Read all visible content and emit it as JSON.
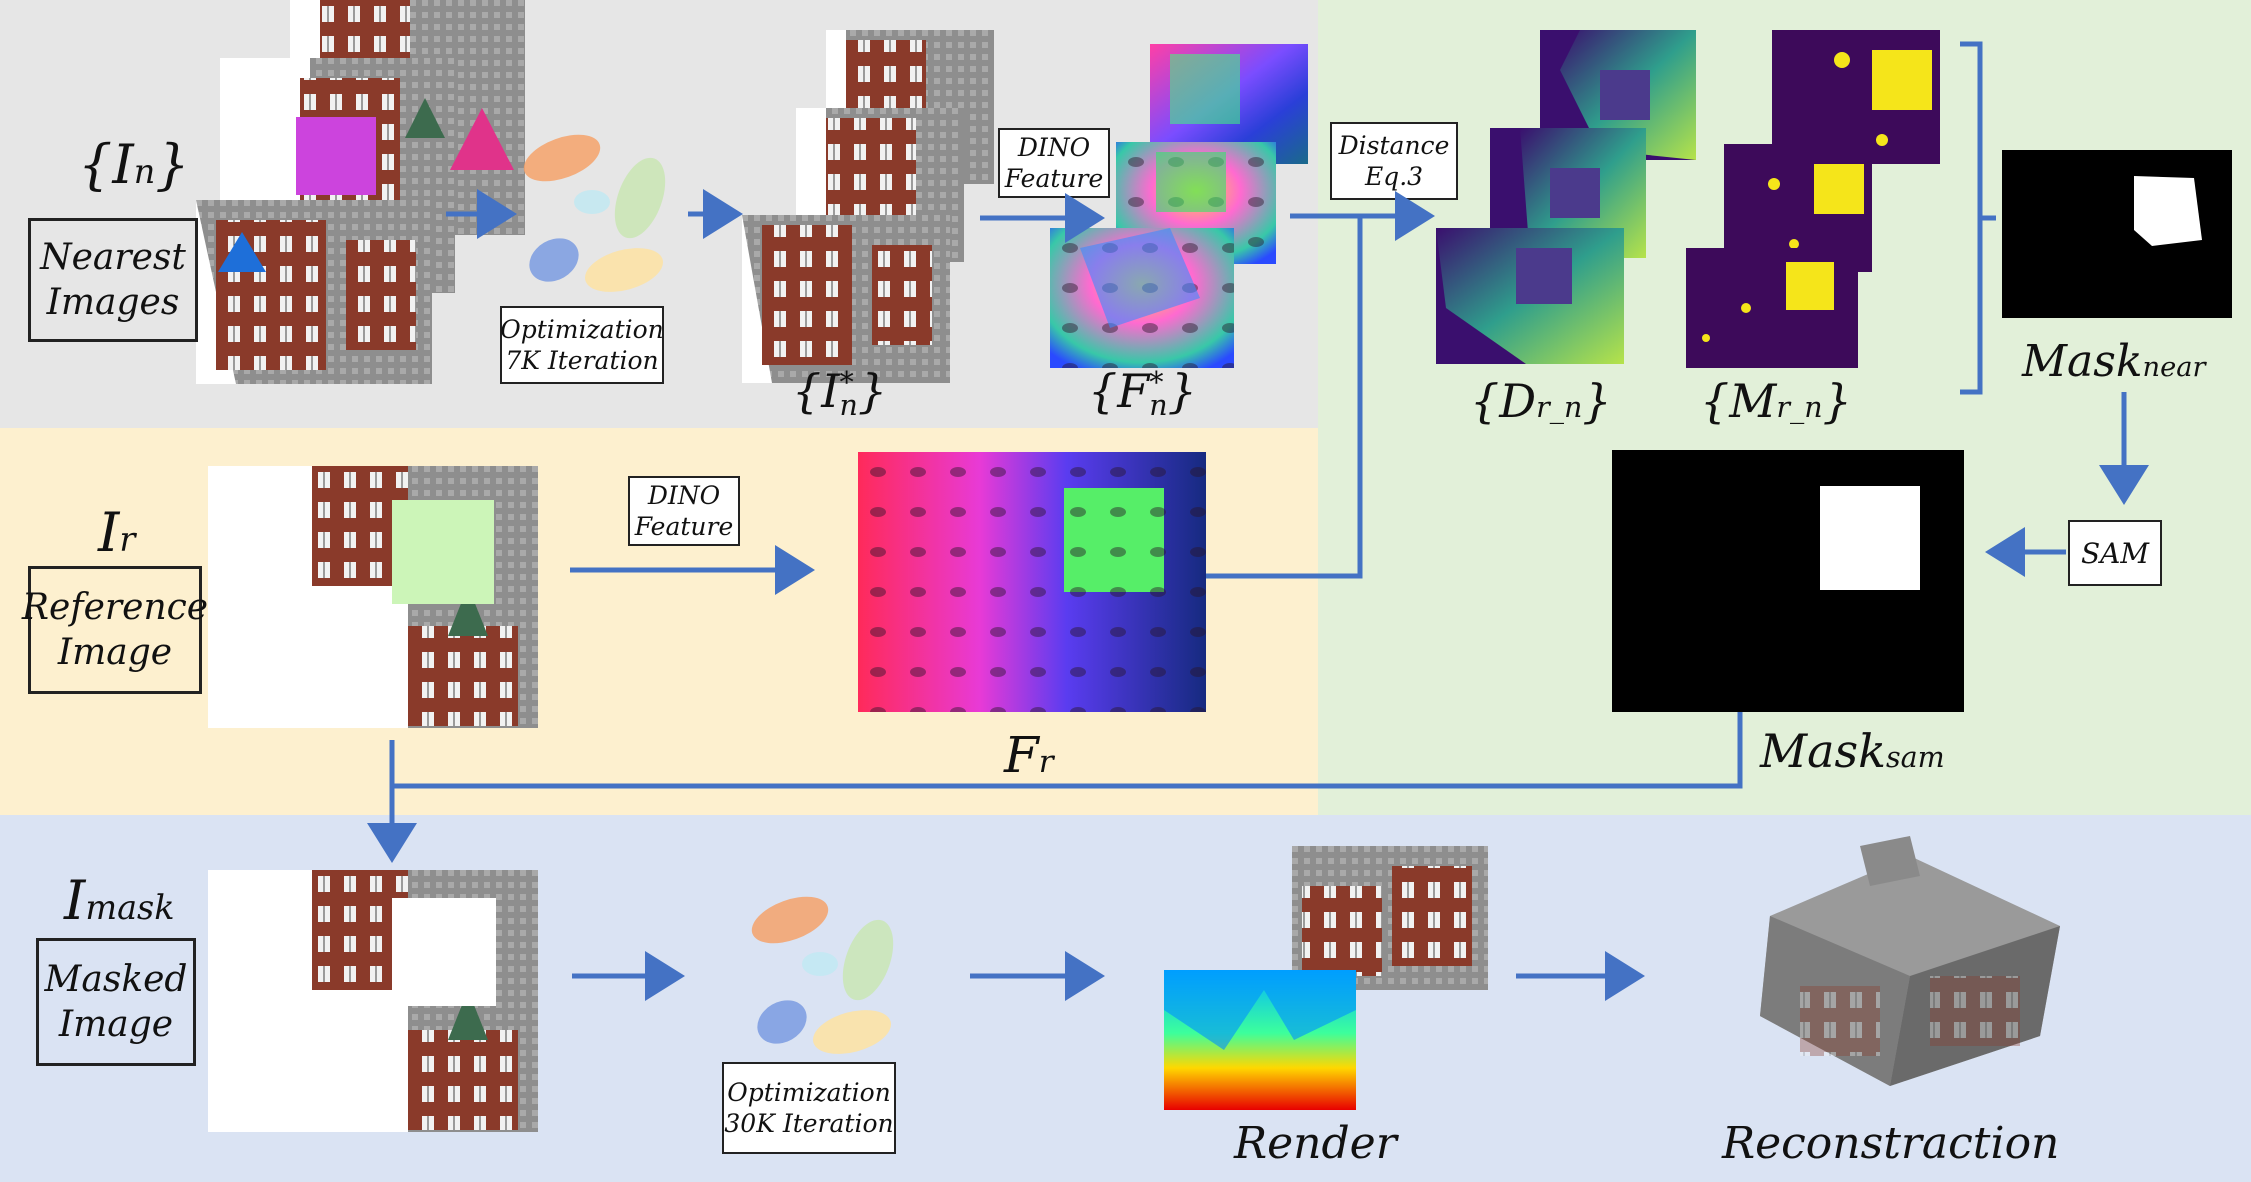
{
  "labels": {
    "In": "{I",
    "In_sub": "n",
    "In_close": "}",
    "In_star": "{I",
    "In_star_sup": "*",
    "In_star_sub": "n",
    "In_star_close": "}",
    "Fn_star": "{F",
    "Fn_star_sup": "*",
    "Fn_star_sub": "n",
    "Fn_star_close": "}",
    "Drn": "{D",
    "Drn_sub": "r_n",
    "Drn_close": "}",
    "Mrn": "{M",
    "Mrn_sub": "r_n",
    "Mrn_close": "}",
    "mask_near": "Mask",
    "mask_near_sub": "near",
    "mask_sam": "Mask",
    "mask_sam_sub": "sam",
    "Ir": "I",
    "Ir_sub": "r",
    "Fr": "F",
    "Fr_sub": "r",
    "Imask": "I",
    "Imask_sub": "mask",
    "render": "Render",
    "reconstruction": "Reconstraction"
  },
  "boxes": {
    "nearest_images": [
      "Nearest",
      "Images"
    ],
    "reference_image": [
      "Reference",
      "Image"
    ],
    "masked_image": [
      "Masked",
      "Image"
    ],
    "optimization_7k": [
      "Optimization",
      "7K Iteration"
    ],
    "optimization_30k": [
      "Optimization",
      "30K Iteration"
    ],
    "dino_feature_top": [
      "DINO",
      "Feature"
    ],
    "dino_feature_mid": [
      "DINO",
      "Feature"
    ],
    "distance": [
      "Distance",
      "Eq.3"
    ],
    "sam": [
      "SAM"
    ]
  },
  "colors": {
    "top_region": "#e6e6e6",
    "middle_region": "#fdf0cf",
    "right_region": "#e2f0d9",
    "bottom_region": "#dae3f3",
    "arrow": "#4472c4",
    "purple_square": "#cc44dd",
    "magenta_triangle": "#e0338a",
    "blue_triangle": "#1e6fd9",
    "green_square": "#ccf5b8"
  }
}
